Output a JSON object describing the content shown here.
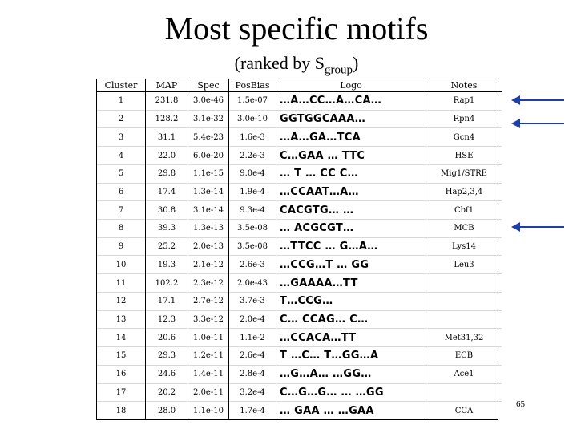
{
  "slide": {
    "title": "Most specific motifs",
    "subtitle_main": "(ranked by S",
    "subtitle_sub": "group",
    "subtitle_end": ")",
    "page_number": "65"
  },
  "arrow_color": "#1f3fa6",
  "table": {
    "headers": [
      "Cluster",
      "MAP",
      "Spec",
      "PosBias",
      "Logo",
      "Notes"
    ],
    "rows": [
      {
        "cluster": "1",
        "map": "231.8",
        "spec": "3.0e-46",
        "pos": "1.5e-07",
        "logo": "…A…CC…A…CA…",
        "notes": "Rap1"
      },
      {
        "cluster": "2",
        "map": "128.2",
        "spec": "3.1e-32",
        "pos": "3.0e-10",
        "logo": "GGTGGCAAA…",
        "notes": "Rpn4"
      },
      {
        "cluster": "3",
        "map": "31.1",
        "spec": "5.4e-23",
        "pos": "1.6e-3",
        "logo": "…A…GA…TCA",
        "notes": "Gcn4"
      },
      {
        "cluster": "4",
        "map": "22.0",
        "spec": "6.0e-20",
        "pos": "2.2e-3",
        "logo": "C…GAA … TTC",
        "notes": "HSE"
      },
      {
        "cluster": "5",
        "map": "29.8",
        "spec": "1.1e-15",
        "pos": "9.0e-4",
        "logo": "… T … CC C…",
        "notes": "Mig1/STRE"
      },
      {
        "cluster": "6",
        "map": "17.4",
        "spec": "1.3e-14",
        "pos": "1.9e-4",
        "logo": "…CCAAT…A…",
        "notes": "Hap2,3,4"
      },
      {
        "cluster": "7",
        "map": "30.8",
        "spec": "3.1e-14",
        "pos": "9.3e-4",
        "logo": "CACGTG… …",
        "notes": "Cbf1"
      },
      {
        "cluster": "8",
        "map": "39.3",
        "spec": "1.3e-13",
        "pos": "3.5e-08",
        "logo": "… ACGCGT…",
        "notes": "MCB"
      },
      {
        "cluster": "9",
        "map": "25.2",
        "spec": "2.0e-13",
        "pos": "3.5e-08",
        "logo": "…TTCC … G…A…",
        "notes": "Lys14"
      },
      {
        "cluster": "10",
        "map": "19.3",
        "spec": "2.1e-12",
        "pos": "2.6e-3",
        "logo": "…CCG…T … GG",
        "notes": "Leu3"
      },
      {
        "cluster": "11",
        "map": "102.2",
        "spec": "2.3e-12",
        "pos": "2.0e-43",
        "logo": "…GAAAA…TT",
        "notes": ""
      },
      {
        "cluster": "12",
        "map": "17.1",
        "spec": "2.7e-12",
        "pos": "3.7e-3",
        "logo": "T…CCG…",
        "notes": ""
      },
      {
        "cluster": "13",
        "map": "12.3",
        "spec": "3.3e-12",
        "pos": "2.0e-4",
        "logo": "C… CCAG… C…",
        "notes": ""
      },
      {
        "cluster": "14",
        "map": "20.6",
        "spec": "1.0e-11",
        "pos": "1.1e-2",
        "logo": "…CCACA…TT",
        "notes": "Met31,32"
      },
      {
        "cluster": "15",
        "map": "29.3",
        "spec": "1.2e-11",
        "pos": "2.6e-4",
        "logo": "T …C… T…GG…A",
        "notes": "ECB"
      },
      {
        "cluster": "16",
        "map": "24.6",
        "spec": "1.4e-11",
        "pos": "2.8e-4",
        "logo": "…G…A… …GG…",
        "notes": "Ace1"
      },
      {
        "cluster": "17",
        "map": "20.2",
        "spec": "2.0e-11",
        "pos": "3.2e-4",
        "logo": "C…G…G… … …GG",
        "notes": ""
      },
      {
        "cluster": "18",
        "map": "28.0",
        "spec": "1.1e-10",
        "pos": "1.7e-4",
        "logo": "… GAA … …GAA",
        "notes": "CCA"
      }
    ]
  }
}
